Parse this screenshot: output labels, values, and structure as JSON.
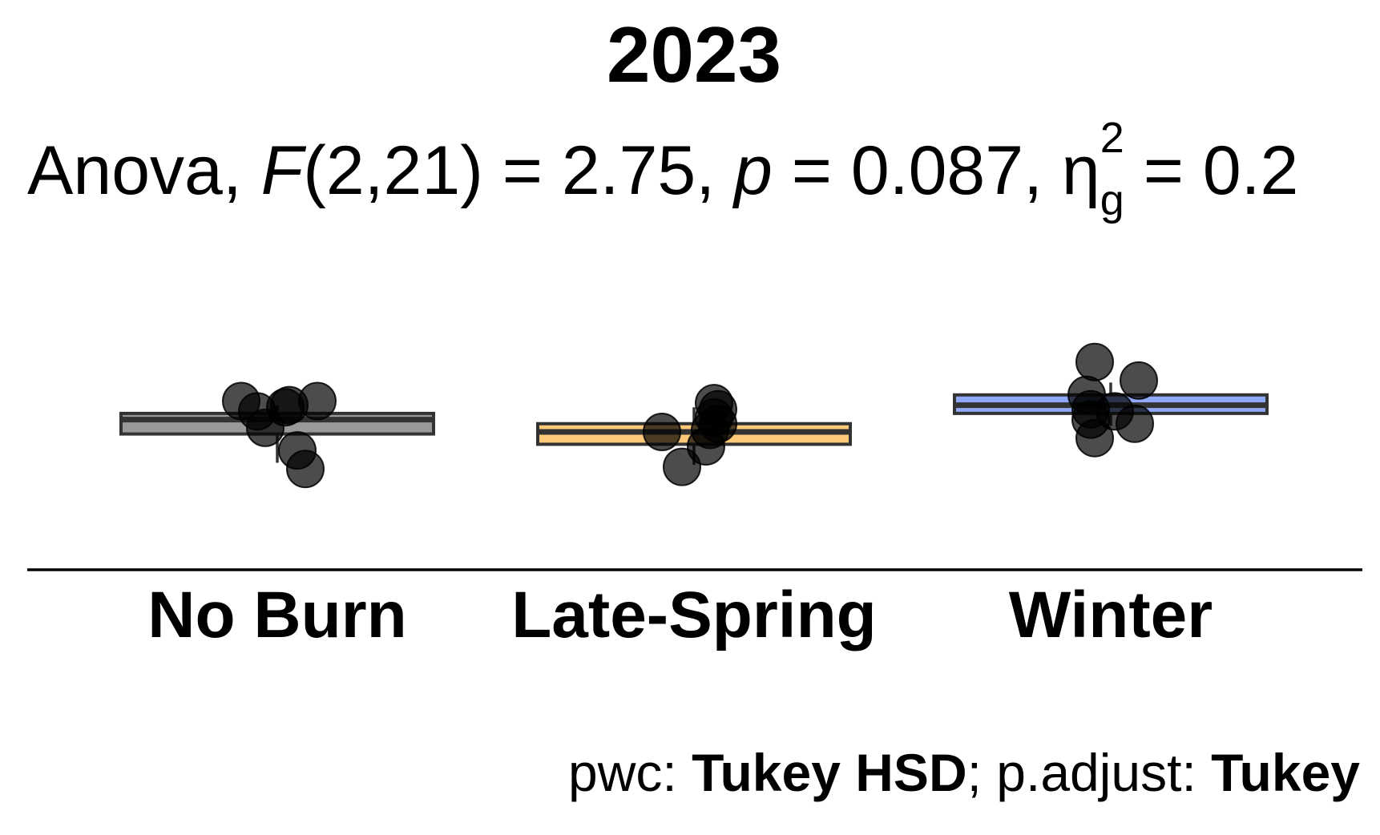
{
  "chart_data": {
    "type": "box",
    "title": "2023",
    "subtitle": {
      "prefix": "Anova, ",
      "stat_name": "F",
      "stat_args": "(2,21) = 2.75, ",
      "p_name": "p",
      "p_text": " = 0.087, ",
      "eta_symbol": "η",
      "eta_sub": "g",
      "eta_sup": "2",
      "eta_text": " = 0.2"
    },
    "caption": {
      "pwc_label": "pwc: ",
      "pwc_method": "Tukey HSD",
      "adjust_label": "; p.adjust: ",
      "adjust_method": "Tukey"
    },
    "xlabel": "",
    "ylabel": "",
    "ylim": [
      -5.5,
      2.7
    ],
    "categories": [
      "No Burn",
      "Late-Spring",
      "Winter"
    ],
    "colors": [
      "#999999",
      "#FFC97A",
      "#8FA8F8"
    ],
    "boxes": [
      {
        "q1": -2.2,
        "median": -1.85,
        "q3": -1.7,
        "whisker_low": -2.9,
        "whisker_high": -1.5
      },
      {
        "q1": -2.45,
        "median": -2.15,
        "q3": -1.95,
        "whisker_low": -2.95,
        "whisker_high": -1.55
      },
      {
        "q1": -1.7,
        "median": -1.5,
        "q3": -1.25,
        "whisker_low": -2.0,
        "whisker_high": -0.95
      }
    ],
    "points": [
      {
        "category": 0,
        "jitter": -0.09,
        "y": -1.4
      },
      {
        "category": 0,
        "jitter": 0.1,
        "y": -1.4
      },
      {
        "category": 0,
        "jitter": -0.05,
        "y": -1.65
      },
      {
        "category": 0,
        "jitter": 0.03,
        "y": -1.5
      },
      {
        "category": 0,
        "jitter": 0.02,
        "y": -1.55
      },
      {
        "category": 0,
        "jitter": -0.03,
        "y": -2.05
      },
      {
        "category": 0,
        "jitter": 0.05,
        "y": -2.6
      },
      {
        "category": 0,
        "jitter": 0.07,
        "y": -3.05
      },
      {
        "category": 1,
        "jitter": 0.05,
        "y": -1.45
      },
      {
        "category": 1,
        "jitter": 0.06,
        "y": -1.6
      },
      {
        "category": 1,
        "jitter": 0.05,
        "y": -1.8
      },
      {
        "category": 1,
        "jitter": 0.06,
        "y": -1.95
      },
      {
        "category": 1,
        "jitter": 0.04,
        "y": -2.1
      },
      {
        "category": 1,
        "jitter": -0.08,
        "y": -2.15
      },
      {
        "category": 1,
        "jitter": 0.03,
        "y": -2.5
      },
      {
        "category": 1,
        "jitter": -0.03,
        "y": -3.0
      },
      {
        "category": 2,
        "jitter": -0.04,
        "y": -0.45
      },
      {
        "category": 2,
        "jitter": 0.07,
        "y": -0.9
      },
      {
        "category": 2,
        "jitter": -0.06,
        "y": -1.25
      },
      {
        "category": 2,
        "jitter": 0.01,
        "y": -1.65
      },
      {
        "category": 2,
        "jitter": -0.05,
        "y": -1.6
      },
      {
        "category": 2,
        "jitter": 0.06,
        "y": -1.95
      },
      {
        "category": 2,
        "jitter": -0.05,
        "y": -1.85
      },
      {
        "category": 2,
        "jitter": -0.04,
        "y": -2.3
      }
    ]
  }
}
